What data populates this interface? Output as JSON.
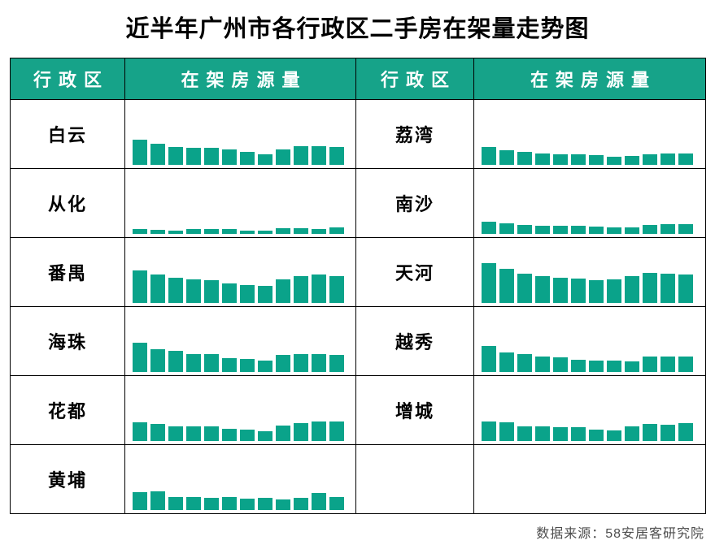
{
  "title": "近半年广州市各行政区二手房在架量走势图",
  "footer": {
    "source": "数据来源：58安居客研究院"
  },
  "colors": {
    "accent": "#0aa38a",
    "header_bg": "#16a389",
    "header_text": "#ffffff",
    "border": "#000000",
    "footer_text": "#4d4d4d"
  },
  "table": {
    "header": [
      "行政区",
      "在架房源量",
      "行政区",
      "在架房源量"
    ],
    "rows": [
      {
        "left_district": "白云",
        "right_district": "荔湾"
      },
      {
        "left_district": "从化",
        "right_district": "南沙"
      },
      {
        "left_district": "番禺",
        "right_district": "天河"
      },
      {
        "left_district": "海珠",
        "right_district": "越秀"
      },
      {
        "left_district": "花都",
        "right_district": "增城"
      },
      {
        "left_district": "黄埔",
        "right_district": ""
      }
    ]
  },
  "chart_data": [
    {
      "type": "bar",
      "district": "白云",
      "x": [
        "1",
        "2",
        "3",
        "4",
        "5",
        "6",
        "7",
        "8",
        "9",
        "10",
        "11",
        "12"
      ],
      "values": [
        31,
        26,
        22,
        21,
        21,
        19,
        16,
        13,
        19,
        23,
        23,
        22
      ],
      "title": "",
      "xlabel": "",
      "ylabel": "",
      "axes_visible": false,
      "note_scale": "relative listing volume, no axis labels shown"
    },
    {
      "type": "bar",
      "district": "从化",
      "x": [
        "1",
        "2",
        "3",
        "4",
        "5",
        "6",
        "7",
        "8",
        "9",
        "10",
        "11",
        "12"
      ],
      "values": [
        6,
        5,
        4,
        6,
        6,
        6,
        4,
        4,
        7,
        7,
        6,
        8
      ],
      "title": "",
      "xlabel": "",
      "ylabel": "",
      "axes_visible": false,
      "note_scale": "relative listing volume, no axis labels shown"
    },
    {
      "type": "bar",
      "district": "番禺",
      "x": [
        "1",
        "2",
        "3",
        "4",
        "5",
        "6",
        "7",
        "8",
        "9",
        "10",
        "11",
        "12"
      ],
      "values": [
        40,
        35,
        31,
        29,
        28,
        24,
        22,
        21,
        29,
        33,
        35,
        33
      ],
      "title": "",
      "xlabel": "",
      "ylabel": "",
      "axes_visible": false,
      "note_scale": "relative listing volume, no axis labels shown"
    },
    {
      "type": "bar",
      "district": "海珠",
      "x": [
        "1",
        "2",
        "3",
        "4",
        "5",
        "6",
        "7",
        "8",
        "9",
        "10",
        "11",
        "12"
      ],
      "values": [
        36,
        28,
        26,
        22,
        22,
        17,
        16,
        14,
        21,
        22,
        22,
        21
      ],
      "title": "",
      "xlabel": "",
      "ylabel": "",
      "axes_visible": false,
      "note_scale": "relative listing volume, no axis labels shown"
    },
    {
      "type": "bar",
      "district": "花都",
      "x": [
        "1",
        "2",
        "3",
        "4",
        "5",
        "6",
        "7",
        "8",
        "9",
        "10",
        "11",
        "12"
      ],
      "values": [
        23,
        21,
        18,
        18,
        18,
        15,
        14,
        12,
        19,
        22,
        24,
        24
      ],
      "title": "",
      "xlabel": "",
      "ylabel": "",
      "axes_visible": false,
      "note_scale": "relative listing volume, no axis labels shown"
    },
    {
      "type": "bar",
      "district": "黄埔",
      "x": [
        "1",
        "2",
        "3",
        "4",
        "5",
        "6",
        "7",
        "8",
        "9",
        "10",
        "11",
        "12"
      ],
      "values": [
        22,
        23,
        16,
        16,
        15,
        16,
        14,
        15,
        13,
        15,
        21,
        16
      ],
      "title": "",
      "xlabel": "",
      "ylabel": "",
      "axes_visible": false,
      "note_scale": "relative listing volume, no axis labels shown"
    },
    {
      "type": "bar",
      "district": "荔湾",
      "x": [
        "1",
        "2",
        "3",
        "4",
        "5",
        "6",
        "7",
        "8",
        "9",
        "10",
        "11",
        "12"
      ],
      "values": [
        22,
        18,
        16,
        14,
        13,
        13,
        12,
        10,
        11,
        13,
        14,
        14
      ],
      "title": "",
      "xlabel": "",
      "ylabel": "",
      "axes_visible": false,
      "note_scale": "relative listing volume, no axis labels shown"
    },
    {
      "type": "bar",
      "district": "南沙",
      "x": [
        "1",
        "2",
        "3",
        "4",
        "5",
        "6",
        "7",
        "8",
        "9",
        "10",
        "11",
        "12"
      ],
      "values": [
        15,
        13,
        11,
        10,
        10,
        10,
        9,
        8,
        8,
        11,
        12,
        12
      ],
      "title": "",
      "xlabel": "",
      "ylabel": "",
      "axes_visible": false,
      "note_scale": "relative listing volume, no axis labels shown"
    },
    {
      "type": "bar",
      "district": "天河",
      "x": [
        "1",
        "2",
        "3",
        "4",
        "5",
        "6",
        "7",
        "8",
        "9",
        "10",
        "11",
        "12"
      ],
      "values": [
        49,
        42,
        36,
        33,
        31,
        30,
        28,
        29,
        33,
        37,
        36,
        35
      ],
      "title": "",
      "xlabel": "",
      "ylabel": "",
      "axes_visible": false,
      "note_scale": "relative listing volume, no axis labels shown"
    },
    {
      "type": "bar",
      "district": "越秀",
      "x": [
        "1",
        "2",
        "3",
        "4",
        "5",
        "6",
        "7",
        "8",
        "9",
        "10",
        "11",
        "12"
      ],
      "values": [
        32,
        24,
        22,
        19,
        18,
        15,
        14,
        14,
        13,
        19,
        19,
        19
      ],
      "title": "",
      "xlabel": "",
      "ylabel": "",
      "axes_visible": false,
      "note_scale": "relative listing volume, no axis labels shown"
    },
    {
      "type": "bar",
      "district": "增城",
      "x": [
        "1",
        "2",
        "3",
        "4",
        "5",
        "6",
        "7",
        "8",
        "9",
        "10",
        "11",
        "12"
      ],
      "values": [
        24,
        23,
        18,
        18,
        17,
        17,
        14,
        13,
        18,
        21,
        20,
        22
      ],
      "title": "",
      "xlabel": "",
      "ylabel": "",
      "axes_visible": false,
      "note_scale": "relative listing volume, no axis labels shown"
    }
  ]
}
